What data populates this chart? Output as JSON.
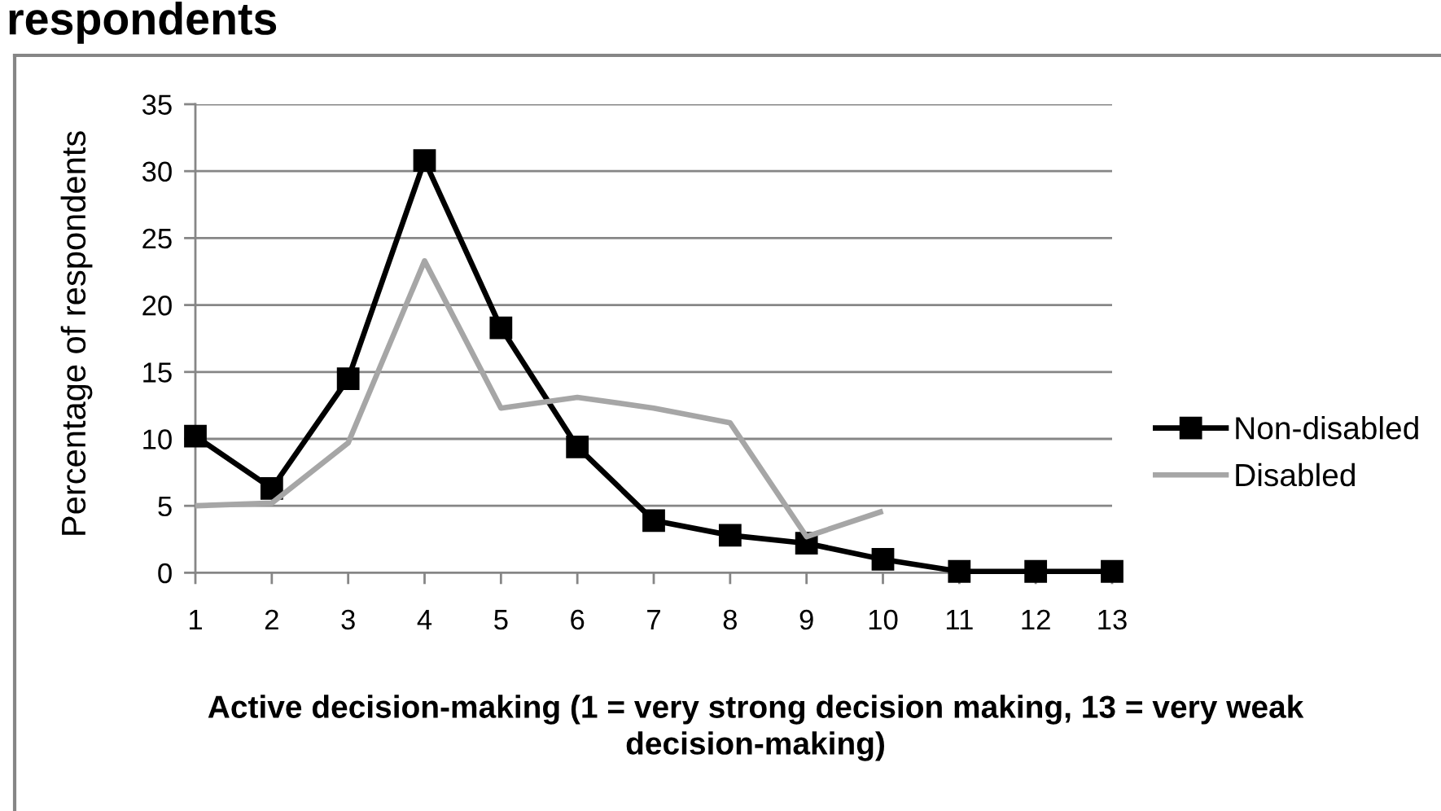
{
  "chart_data": {
    "type": "line",
    "title": "respondents",
    "xlabel": "Active decision-making (1 = very strong decision making, 13 = very weak decision-making)",
    "ylabel": "Percentage of respondents",
    "categories": [
      "1",
      "2",
      "3",
      "4",
      "5",
      "6",
      "7",
      "8",
      "9",
      "10",
      "11",
      "12",
      "13"
    ],
    "series": [
      {
        "name": "Non-disabled",
        "color": "#000000",
        "marker": "square",
        "values": [
          10.2,
          6.3,
          14.5,
          30.8,
          18.3,
          9.4,
          3.9,
          2.8,
          2.2,
          1.0,
          0.1,
          0.1,
          0.1
        ]
      },
      {
        "name": "Disabled",
        "color": "#a6a6a6",
        "marker": "none",
        "values": [
          5.0,
          5.2,
          9.7,
          23.3,
          12.3,
          13.1,
          12.3,
          11.2,
          2.7,
          4.6,
          null,
          null,
          null
        ]
      }
    ],
    "ylim": [
      0,
      35
    ],
    "yticks": [
      0,
      5,
      10,
      15,
      20,
      25,
      30,
      35
    ],
    "grid": "y",
    "legend": "right"
  }
}
